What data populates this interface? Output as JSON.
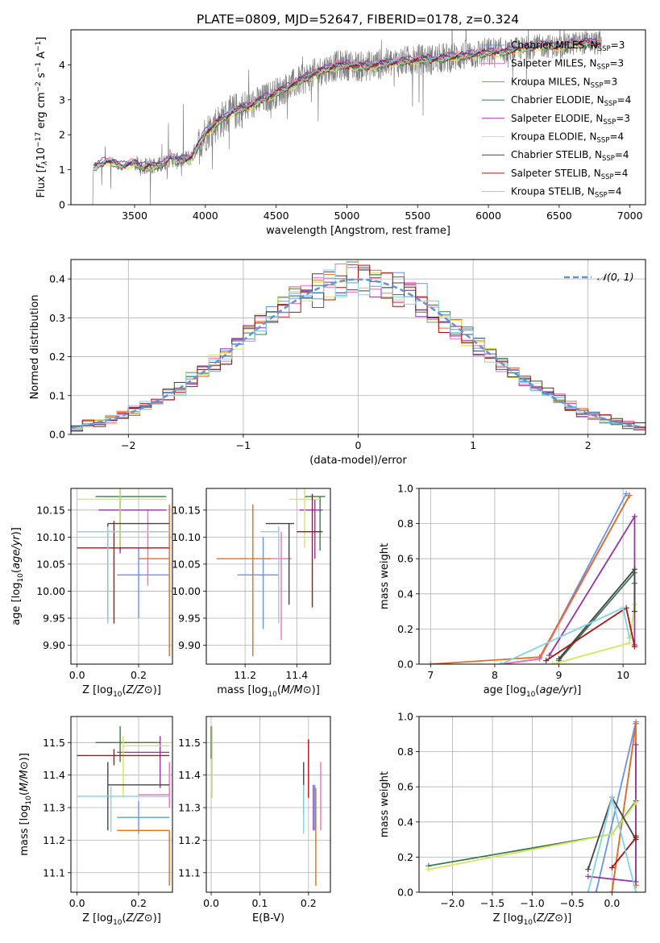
{
  "figure": {
    "title": "PLATE=0809, MJD=52647, FIBERID=0178, z=0.324"
  },
  "models": [
    {
      "name": "Chabrier MILES",
      "nssp": 3,
      "color": "#6495ed"
    },
    {
      "name": "Salpeter MILES",
      "nssp": 3,
      "color": "#ff69b4"
    },
    {
      "name": "Kroupa MILES",
      "nssp": 3,
      "color": "#e07020"
    },
    {
      "name": "Chabrier ELODIE",
      "nssp": 4,
      "color": "#3a7a50"
    },
    {
      "name": "Salpeter ELODIE",
      "nssp": 3,
      "color": "#9933aa"
    },
    {
      "name": "Kroupa ELODIE",
      "nssp": 4,
      "color": "#d4e85a"
    },
    {
      "name": "Chabrier STELIB",
      "nssp": 4,
      "color": "#444444"
    },
    {
      "name": "Salpeter STELIB",
      "nssp": 4,
      "color": "#b01010"
    },
    {
      "name": "Kroupa STELIB",
      "nssp": 4,
      "color": "#7fd4e8"
    }
  ],
  "chart_data": [
    {
      "id": "spectrum",
      "type": "line",
      "title": "PLATE=0809, MJD=52647, FIBERID=0178, z=0.324",
      "xlabel": "wavelength [Angstrom, rest frame]",
      "ylabel_parts": [
        "Flux [",
        "f",
        "λ",
        "10",
        "−17",
        " erg cm",
        "−2",
        " s",
        "−1",
        " A",
        "−1",
        "]"
      ],
      "xlim": [
        3050,
        7110
      ],
      "ylim": [
        0,
        5
      ],
      "xticks": [
        3500,
        4000,
        4500,
        5000,
        5500,
        6000,
        6500,
        7000
      ],
      "yticks": [
        0,
        1,
        2,
        3,
        4
      ],
      "legend_position": "right",
      "data_color": "#808080",
      "data_knots": {
        "x": [
          3200,
          3210,
          3250,
          3300,
          3350,
          3400,
          3450,
          3500,
          3550,
          3600,
          3650,
          3700,
          3750,
          3800,
          3850,
          3900,
          3950,
          4000,
          4100,
          4200,
          4300,
          4400,
          4500,
          4600,
          4700,
          4800,
          4900,
          5000,
          5100,
          5200,
          5300,
          5400,
          5500,
          5600,
          5700,
          5800,
          5900,
          6000,
          6100,
          6200,
          6300,
          6400,
          6500,
          6600,
          6700,
          6800
        ],
        "y": [
          0.0,
          1.05,
          1.15,
          1.25,
          1.2,
          1.1,
          1.15,
          1.2,
          1.05,
          1.15,
          1.1,
          1.15,
          1.35,
          1.25,
          1.3,
          1.35,
          1.7,
          2.05,
          2.4,
          2.65,
          2.8,
          3.0,
          3.2,
          3.4,
          3.6,
          3.8,
          3.95,
          4.0,
          3.95,
          4.0,
          4.05,
          4.1,
          4.15,
          4.15,
          4.2,
          4.25,
          4.3,
          4.35,
          4.35,
          4.45,
          4.5,
          4.55,
          4.5,
          4.6,
          4.65,
          4.6
        ]
      },
      "model_offsets": [
        0.02,
        0.05,
        0.0,
        -0.04,
        0.06,
        -0.06,
        0.03,
        -0.02,
        0.01
      ]
    },
    {
      "id": "residuals",
      "type": "histogram",
      "xlabel": "(data-model)/error",
      "ylabel": "Normed distribution",
      "xlim": [
        -2.5,
        2.5
      ],
      "ylim": [
        0,
        0.45
      ],
      "xticks": [
        -2,
        -1,
        0,
        1,
        2
      ],
      "yticks": [
        0.0,
        0.1,
        0.2,
        0.3,
        0.4
      ],
      "bin_width": 0.1,
      "reference_curve": {
        "label": "𝒩(0, 1)",
        "mean": 0,
        "sigma": 1,
        "color": "#6a8fd6"
      },
      "grid": true
    },
    {
      "id": "age-vs-z",
      "type": "errorbar",
      "xlabel": "Z [log10(Z/Z⊙)]",
      "ylabel": "age  [log10(age/yr)]",
      "xlim": [
        -0.02,
        0.31
      ],
      "ylim": [
        9.865,
        10.19
      ],
      "xticks": [
        0.0,
        0.2
      ],
      "yticks": [
        9.9,
        9.95,
        10.0,
        10.05,
        10.1,
        10.15
      ],
      "points": [
        {
          "model": 0,
          "x": 0.2,
          "xerr": [
            0.07,
            0.1
          ],
          "y": 10.03,
          "yerr": [
            0.08,
            0.05
          ]
        },
        {
          "model": 1,
          "x": 0.23,
          "xerr": [
            0.1,
            0.06
          ],
          "y": 10.11,
          "yerr": [
            0.1,
            0.04
          ]
        },
        {
          "model": 2,
          "x": 0.3,
          "xerr": [
            0.1,
            0.0
          ],
          "y": 10.06,
          "yerr": [
            0.18,
            0.1
          ]
        },
        {
          "model": 3,
          "x": 0.14,
          "xerr": [
            0.08,
            0.15
          ],
          "y": 10.175,
          "yerr": [
            0.1,
            0.02
          ]
        },
        {
          "model": 4,
          "x": 0.14,
          "xerr": [
            0.07,
            0.15
          ],
          "y": 10.15,
          "yerr": [
            0.08,
            0.025
          ]
        },
        {
          "model": 5,
          "x": 0.14,
          "xerr": [
            0.14,
            0.15
          ],
          "y": 10.17,
          "yerr": [
            0.09,
            0.02
          ]
        },
        {
          "model": 6,
          "x": 0.1,
          "xerr": [
            0.0,
            0.2
          ],
          "y": 10.125,
          "yerr": [
            0.175,
            0.0
          ]
        },
        {
          "model": 7,
          "x": 0.12,
          "xerr": [
            0.12,
            0.18
          ],
          "y": 10.08,
          "yerr": [
            0.14,
            0.05
          ]
        },
        {
          "model": 8,
          "x": 0.1,
          "xerr": [
            0.1,
            0.2
          ],
          "y": 10.11,
          "yerr": [
            0.17,
            0.01
          ]
        }
      ],
      "grid": true
    },
    {
      "id": "age-vs-mass",
      "type": "errorbar",
      "xlabel": "mass [log10(M/M⊙)]",
      "xlim": [
        11.05,
        11.53
      ],
      "ylim": [
        9.865,
        10.19
      ],
      "xticks": [
        11.2,
        11.4
      ],
      "yticks": [
        9.9,
        9.95,
        10.0,
        10.05,
        10.1,
        10.15
      ],
      "points": [
        {
          "model": 0,
          "x": 11.27,
          "xerr": [
            0.1,
            0.06
          ],
          "y": 10.03,
          "yerr": [
            0.1,
            0.07
          ]
        },
        {
          "model": 1,
          "x": 11.34,
          "xerr": [
            0.06,
            0.04
          ],
          "y": 10.06,
          "yerr": [
            0.15,
            0.05
          ]
        },
        {
          "model": 2,
          "x": 11.23,
          "xerr": [
            0.14,
            0.07
          ],
          "y": 10.06,
          "yerr": [
            0.18,
            0.1
          ]
        },
        {
          "model": 3,
          "x": 11.49,
          "xerr": [
            0.06,
            0.02
          ],
          "y": 10.175,
          "yerr": [
            0.1,
            0.0
          ]
        },
        {
          "model": 4,
          "x": 11.47,
          "xerr": [
            0.06,
            0.03
          ],
          "y": 10.15,
          "yerr": [
            0.09,
            0.02
          ]
        },
        {
          "model": 5,
          "x": 11.43,
          "xerr": [
            0.06,
            0.06
          ],
          "y": 10.17,
          "yerr": [
            0.09,
            0.02
          ]
        },
        {
          "model": 6,
          "x": 11.37,
          "xerr": [
            0.09,
            0.02
          ],
          "y": 10.125,
          "yerr": [
            0.15,
            0.0
          ]
        },
        {
          "model": 7,
          "x": 11.46,
          "xerr": [
            0.06,
            0.04
          ],
          "y": 10.11,
          "yerr": [
            0.14,
            0.07
          ]
        },
        {
          "model": 8,
          "x": 11.33,
          "xerr": [
            0.07,
            0.0
          ],
          "y": 10.11,
          "yerr": [
            0.17,
            0.01
          ]
        }
      ],
      "grid": true
    },
    {
      "id": "weight-vs-age",
      "type": "line",
      "xlabel": "age  [log10(age/yr)]",
      "ylabel": "mass weight",
      "xlim": [
        6.82,
        10.35
      ],
      "ylim": [
        0,
        1.0
      ],
      "xticks": [
        7,
        8,
        9,
        10
      ],
      "yticks": [
        0.0,
        0.2,
        0.4,
        0.6,
        0.8,
        1.0
      ],
      "series": [
        {
          "model": 0,
          "x": [
            8.1,
            8.7,
            10.05
          ],
          "y": [
            0.0,
            0.03,
            0.97
          ]
        },
        {
          "model": 1,
          "x": [
            8.1,
            8.7,
            10.1
          ],
          "y": [
            0.0,
            0.03,
            0.96
          ]
        },
        {
          "model": 2,
          "x": [
            7.0,
            8.7,
            10.1
          ],
          "y": [
            0.0,
            0.04,
            0.96
          ]
        },
        {
          "model": 3,
          "x": [
            9.0,
            10.18,
            10.18
          ],
          "y": [
            0.02,
            0.52,
            0.46
          ]
        },
        {
          "model": 4,
          "x": [
            8.85,
            10.18,
            10.18
          ],
          "y": [
            0.05,
            0.84,
            0.11
          ]
        },
        {
          "model": 5,
          "x": [
            8.9,
            10.1,
            10.18
          ],
          "y": [
            0.0,
            0.12,
            0.34
          ]
        },
        {
          "model": 6,
          "x": [
            9.0,
            10.18,
            10.18
          ],
          "y": [
            0.03,
            0.54,
            0.3
          ]
        },
        {
          "model": 7,
          "x": [
            8.8,
            10.05,
            10.18
          ],
          "y": [
            0.02,
            0.32,
            0.1
          ]
        },
        {
          "model": 8,
          "x": [
            8.1,
            10.0,
            10.1
          ],
          "y": [
            0.0,
            0.32,
            0.15
          ]
        }
      ],
      "grid": true
    },
    {
      "id": "mass-vs-z",
      "type": "errorbar",
      "xlabel": "Z [log10(Z/Z⊙)]",
      "ylabel": "mass [log10(M/M⊙)]",
      "xlim": [
        -0.02,
        0.31
      ],
      "ylim": [
        11.04,
        11.58
      ],
      "xticks": [
        0.0,
        0.2
      ],
      "yticks": [
        11.1,
        11.2,
        11.3,
        11.4,
        11.5
      ],
      "points": [
        {
          "model": 0,
          "x": 0.2,
          "xerr": [
            0.07,
            0.1
          ],
          "y": 11.27,
          "yerr": [
            0.05,
            0.05
          ]
        },
        {
          "model": 1,
          "x": 0.3,
          "xerr": [
            0.1,
            0.0
          ],
          "y": 11.34,
          "yerr": [
            0.04,
            0.1
          ]
        },
        {
          "model": 2,
          "x": 0.3,
          "xerr": [
            0.17,
            0.0
          ],
          "y": 11.23,
          "yerr": [
            0.17,
            0.0
          ]
        },
        {
          "model": 3,
          "x": 0.14,
          "xerr": [
            0.08,
            0.13
          ],
          "y": 11.5,
          "yerr": [
            0.06,
            0.05
          ]
        },
        {
          "model": 4,
          "x": 0.27,
          "xerr": [
            0.14,
            0.03
          ],
          "y": 11.47,
          "yerr": [
            0.11,
            0.05
          ]
        },
        {
          "model": 5,
          "x": 0.15,
          "xerr": [
            0.0,
            0.15
          ],
          "y": 11.49,
          "yerr": [
            0.16,
            0.03
          ]
        },
        {
          "model": 6,
          "x": 0.1,
          "xerr": [
            0.0,
            0.2
          ],
          "y": 11.37,
          "yerr": [
            0.14,
            0.07
          ]
        },
        {
          "model": 7,
          "x": 0.12,
          "xerr": [
            0.12,
            0.18
          ],
          "y": 11.46,
          "yerr": [
            0.03,
            0.02
          ]
        },
        {
          "model": 8,
          "x": 0.11,
          "xerr": [
            0.11,
            0.19
          ],
          "y": 11.335,
          "yerr": [
            0.11,
            0.03
          ]
        }
      ],
      "grid": true
    },
    {
      "id": "mass-vs-ebv",
      "type": "errorbar",
      "xlabel": "E(B-V)",
      "xlim": [
        -0.01,
        0.245
      ],
      "ylim": [
        11.04,
        11.58
      ],
      "xticks": [
        0.0,
        0.1,
        0.2
      ],
      "yticks": [
        11.1,
        11.2,
        11.3,
        11.4,
        11.5
      ],
      "points": [
        {
          "model": 0,
          "x": 0.213,
          "y": 11.3,
          "yerr": [
            0.07,
            0.07
          ]
        },
        {
          "model": 1,
          "x": 0.225,
          "y": 11.34,
          "yerr": [
            0.11,
            0.1
          ]
        },
        {
          "model": 2,
          "x": 0.215,
          "y": 11.2,
          "yerr": [
            0.14,
            0.16
          ]
        },
        {
          "model": 3,
          "x": 0.0,
          "y": 11.5,
          "yerr": [
            0.05,
            0.05
          ]
        },
        {
          "model": 4,
          "x": 0.21,
          "y": 11.3,
          "yerr": [
            0.07,
            0.07
          ]
        },
        {
          "model": 5,
          "x": 0.002,
          "y": 11.45,
          "yerr": [
            0.12,
            0.1
          ]
        },
        {
          "model": 6,
          "x": 0.19,
          "y": 11.36,
          "yerr": [
            0.08,
            0.08
          ]
        },
        {
          "model": 7,
          "x": 0.2,
          "y": 11.44,
          "yerr": [
            0.11,
            0.07
          ]
        },
        {
          "model": 8,
          "x": 0.19,
          "y": 11.32,
          "yerr": [
            0.1,
            0.05
          ]
        }
      ],
      "grid": true
    },
    {
      "id": "weight-vs-z",
      "type": "line",
      "xlabel": "Z [log10(Z/Z⊙)]",
      "ylabel": "mass weight",
      "xlim": [
        -2.42,
        0.42
      ],
      "ylim": [
        0,
        1.0
      ],
      "xticks": [
        -2.0,
        -1.5,
        -1.0,
        -0.5,
        0.0
      ],
      "yticks": [
        0.0,
        0.2,
        0.4,
        0.6,
        0.8,
        1.0
      ],
      "series": [
        {
          "model": 0,
          "x": [
            -0.2,
            0.3,
            0.3
          ],
          "y": [
            0.0,
            0.97,
            0.96
          ]
        },
        {
          "model": 1,
          "x": [
            0.0,
            0.3,
            0.3
          ],
          "y": [
            0.0,
            0.96,
            0.04
          ]
        },
        {
          "model": 2,
          "x": [
            0.0,
            0.3,
            0.3
          ],
          "y": [
            0.0,
            0.96,
            0.04
          ]
        },
        {
          "model": 3,
          "x": [
            -2.3,
            0.0,
            0.3
          ],
          "y": [
            0.15,
            0.33,
            0.52
          ]
        },
        {
          "model": 4,
          "x": [
            -0.3,
            0.3,
            0.3
          ],
          "y": [
            0.09,
            0.06,
            0.84
          ]
        },
        {
          "model": 5,
          "x": [
            -2.3,
            0.0,
            0.3
          ],
          "y": [
            0.13,
            0.33,
            0.51
          ]
        },
        {
          "model": 6,
          "x": [
            -0.3,
            0.0,
            0.3
          ],
          "y": [
            0.13,
            0.54,
            0.3
          ]
        },
        {
          "model": 7,
          "x": [
            0.0,
            0.3,
            0.3
          ],
          "y": [
            0.14,
            0.31,
            0.32
          ]
        },
        {
          "model": 8,
          "x": [
            -0.3,
            0.0,
            0.3
          ],
          "y": [
            0.0,
            0.54,
            0.0
          ]
        }
      ],
      "grid": true
    }
  ]
}
